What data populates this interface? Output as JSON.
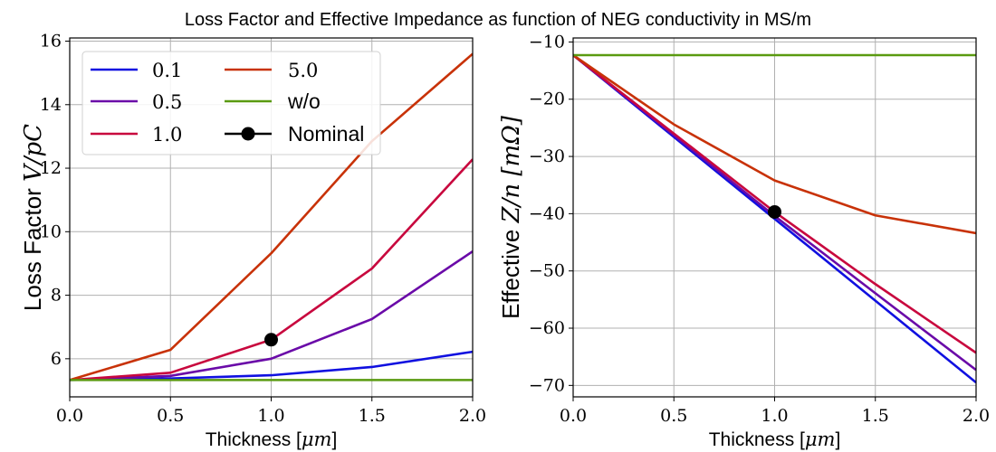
{
  "figure": {
    "title": "Loss Factor and Effective Impedance as function of NEG conductivity in MS/m"
  },
  "chart_data": [
    {
      "type": "line",
      "id": "loss-factor",
      "ylabel_prefix": "Loss Factor ",
      "ylabel_math": "V/pC",
      "xlabel_prefix": "Thickness [",
      "xlabel_math": "μm",
      "xlabel_suffix": "]",
      "xlim": [
        0,
        2
      ],
      "ylim": [
        4.8,
        16.1
      ],
      "xticks": [
        0,
        0.5,
        1,
        1.5,
        2
      ],
      "xtick_labels": [
        "0.0",
        "0.5",
        "1.0",
        "1.5",
        "2.0"
      ],
      "yticks": [
        6,
        8,
        10,
        12,
        14,
        16
      ],
      "ytick_labels": [
        "6",
        "8",
        "10",
        "12",
        "14",
        "16"
      ],
      "grid": true,
      "legend": "upper-left",
      "x": [
        0,
        0.5,
        1,
        1.5,
        2
      ],
      "series": [
        {
          "name": "0.1",
          "color": "#1010e0",
          "values": [
            5.33,
            5.38,
            5.48,
            5.74,
            6.22
          ]
        },
        {
          "name": "0.5",
          "color": "#6a0aa8",
          "values": [
            5.33,
            5.46,
            6.0,
            7.25,
            9.38
          ]
        },
        {
          "name": "1.0",
          "color": "#c8083e",
          "values": [
            5.33,
            5.56,
            6.6,
            8.84,
            12.28
          ]
        },
        {
          "name": "5.0",
          "color": "#c83208",
          "values": [
            5.33,
            6.28,
            9.32,
            12.85,
            15.6
          ]
        },
        {
          "name": "w/o",
          "color": "#5a9a10",
          "values": [
            5.33,
            5.33,
            5.33,
            5.33,
            5.33
          ]
        }
      ],
      "nominal": {
        "name": "Nominal",
        "x": 1.0,
        "y": 6.6,
        "color": "#000000"
      }
    },
    {
      "type": "line",
      "id": "effective-impedance",
      "ylabel_prefix": "Effective ",
      "ylabel_math": "Z/n  [mΩ]",
      "xlabel_prefix": "Thickness [",
      "xlabel_math": "μm",
      "xlabel_suffix": "]",
      "xlim": [
        0,
        2
      ],
      "ylim": [
        -72,
        -9.3
      ],
      "xticks": [
        0,
        0.5,
        1,
        1.5,
        2
      ],
      "xtick_labels": [
        "0.0",
        "0.5",
        "1.0",
        "1.5",
        "2.0"
      ],
      "yticks": [
        -10,
        -20,
        -30,
        -40,
        -50,
        -60,
        -70
      ],
      "ytick_labels": [
        "−10",
        "−20",
        "−30",
        "−40",
        "−50",
        "−60",
        "−70"
      ],
      "grid": true,
      "legend": "none",
      "x": [
        0,
        0.5,
        1,
        1.5,
        2
      ],
      "series": [
        {
          "name": "0.1",
          "color": "#1010e0",
          "values": [
            -12.3,
            -26.6,
            -40.9,
            -55.2,
            -69.5
          ]
        },
        {
          "name": "0.5",
          "color": "#6a0aa8",
          "values": [
            -12.3,
            -26.3,
            -40.4,
            -53.9,
            -67.3
          ]
        },
        {
          "name": "1.0",
          "color": "#c8083e",
          "values": [
            -12.3,
            -26.0,
            -39.7,
            -52.3,
            -64.3
          ]
        },
        {
          "name": "5.0",
          "color": "#c83208",
          "values": [
            -12.3,
            -24.4,
            -34.2,
            -40.3,
            -43.4
          ]
        },
        {
          "name": "w/o",
          "color": "#5a9a10",
          "values": [
            -12.3,
            -12.3,
            -12.3,
            -12.3,
            -12.3
          ]
        }
      ],
      "nominal": {
        "name": "Nominal",
        "x": 1.0,
        "y": -39.7,
        "color": "#000000"
      }
    }
  ]
}
